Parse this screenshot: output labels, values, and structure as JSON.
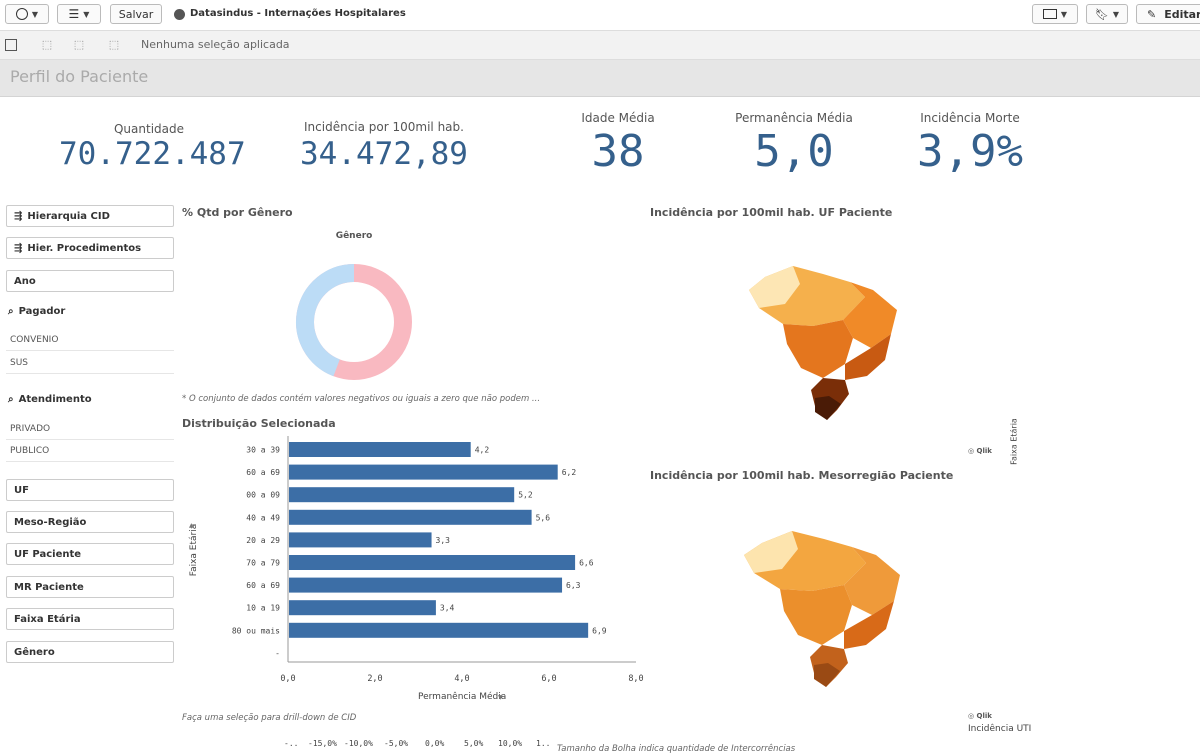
{
  "toolbar": {
    "save_label": "Salvar",
    "app_title": "Datasindus - Internações Hospitalares",
    "edit_label": "Editar"
  },
  "selections": {
    "status": "Nenhuma seleção aplicada"
  },
  "sheet": {
    "title": "Perfil do Paciente"
  },
  "kpis": [
    {
      "label": "Quantidade",
      "value": "70.722.487"
    },
    {
      "label": "Incidência por 100mil hab.",
      "value": "34.472,89"
    },
    {
      "label": "Idade Média",
      "value": "38"
    },
    {
      "label": "Permanência Média",
      "value": "5,0"
    },
    {
      "label": "Incidência Morte",
      "value": "3,9%"
    }
  ],
  "filters": {
    "hier_cid": "Hierarquia CID",
    "hier_proc": "Hier. Procedimentos",
    "ano": "Ano",
    "pagador": {
      "title": "Pagador",
      "values": [
        "CONVENIO",
        "SUS"
      ]
    },
    "atendimento": {
      "title": "Atendimento",
      "values": [
        "PRIVADO",
        "PUBLICO"
      ]
    },
    "uf": "UF",
    "meso": "Meso-Região",
    "uf_paciente": "UF Paciente",
    "mr_paciente": "MR Paciente",
    "faixa": "Faixa Etária",
    "genero": "Gênero"
  },
  "donut": {
    "title": "% Qtd por Gênero",
    "subtitle": "Gênero",
    "note": "* O conjunto de dados contém valores negativos ou iguais a zero que não podem ...",
    "colors": [
      "#f9b9c1",
      "#bcdcf6"
    ]
  },
  "map1": {
    "title": "Incidência por 100mil hab. UF Paciente",
    "credit": "Qlik",
    "legend": "Faixa Etária"
  },
  "map2": {
    "title": "Incidência por 100mil hab. Mesorregião Paciente",
    "credit": "Qlik",
    "label": "Incidência UTI"
  },
  "bottom": {
    "cid_note": "Faça uma seleção para drill-down de CID",
    "bubble_note": "Tamanho da Bolha indica quantidade de Intercorrências",
    "ticks": [
      "-..",
      "-15,0%",
      "-10,0%",
      "-5,0%",
      "0,0%",
      "5,0%",
      "10,0%",
      "1.."
    ]
  },
  "chart_data": {
    "type": "bar",
    "orientation": "horizontal",
    "title": "Distribuição Selecionada",
    "categories": [
      "30 a 39",
      "60 a 69",
      "00 a 09",
      "40 a 49",
      "20 a 29",
      "70 a 79",
      "60 a 69",
      "10 a 19",
      "80 ou mais",
      "-"
    ],
    "values": [
      4.2,
      6.2,
      5.2,
      5.6,
      3.3,
      6.6,
      6.3,
      3.4,
      6.9,
      null
    ],
    "value_labels": [
      "4,2",
      "6,2",
      "5,2",
      "5,6",
      "3,3",
      "6,6",
      "6,3",
      "3,4",
      "6,9",
      ""
    ],
    "xlabel": "Permanência Média",
    "ylabel": "Faixa Etária",
    "xlim": [
      0,
      8
    ],
    "ticks": [
      "0,0",
      "2,0",
      "4,0",
      "6,0",
      "8,0"
    ],
    "color": "#3c6ea6"
  }
}
